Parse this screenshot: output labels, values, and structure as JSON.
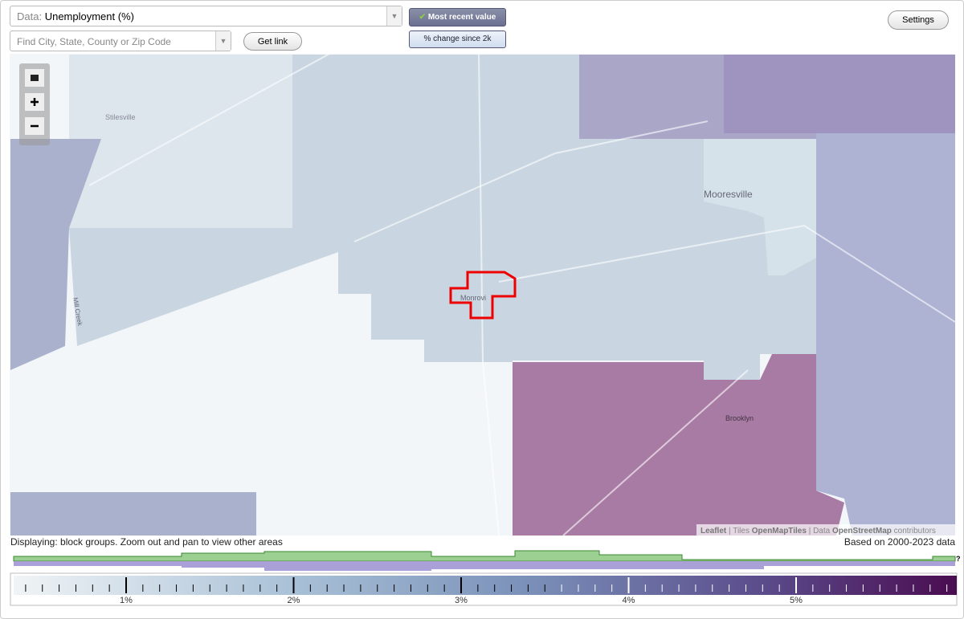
{
  "header": {
    "data_label": "Data:",
    "data_value": "Unemployment (%)",
    "search_placeholder": "Find City, State, County or Zip Code",
    "get_link": "Get link",
    "most_recent": "Most recent value",
    "change_since": "% change since 2k",
    "settings": "Settings"
  },
  "map": {
    "places": [
      "Stilesville",
      "Mooresville",
      "Monrovi",
      "Brooklyn",
      "Mill Creek"
    ],
    "attribution": {
      "leaflet": "Leaflet",
      "tiles": "Tiles",
      "tiles_source": "OpenMapTiles",
      "data": "Data",
      "data_source": "OpenStreetMap",
      "contributors": "contributors"
    }
  },
  "footer": {
    "displaying": "Displaying: block groups. Zoom out and pan to view other areas",
    "based_on": "Based on 2000-2023 data",
    "help": "?"
  },
  "legend": {
    "ticks": [
      "1%",
      "2%",
      "3%",
      "4%",
      "5%"
    ]
  }
}
